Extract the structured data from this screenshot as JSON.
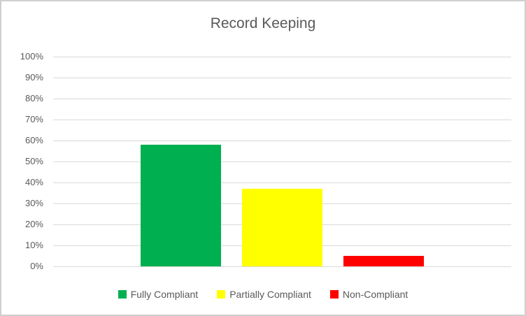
{
  "chart_data": {
    "type": "bar",
    "title": "Record Keeping",
    "categories": [
      "Fully Compliant",
      "Partially Compliant",
      "Non-Compliant"
    ],
    "values": [
      58,
      37,
      5
    ],
    "series": [
      {
        "name": "Fully Compliant",
        "value": 58,
        "color": "#00B050"
      },
      {
        "name": "Partially Compliant",
        "value": 37,
        "color": "#FFFF00"
      },
      {
        "name": "Non-Compliant",
        "value": 5,
        "color": "#FF0000"
      }
    ],
    "xlabel": "",
    "ylabel": "",
    "ylim": [
      0,
      100
    ],
    "ytick_step": 10,
    "ytick_labels": [
      "100%",
      "90%",
      "80%",
      "70%",
      "60%",
      "50%",
      "40%",
      "30%",
      "20%",
      "10%",
      "0%"
    ],
    "grid": true,
    "legend_position": "bottom"
  },
  "colors": {
    "background": "#FFFFFF",
    "border": "#CFCFCF",
    "gridline": "#D9D9D9",
    "title_text": "#595959",
    "axis_text": "#595959",
    "legend_text": "#595959"
  }
}
